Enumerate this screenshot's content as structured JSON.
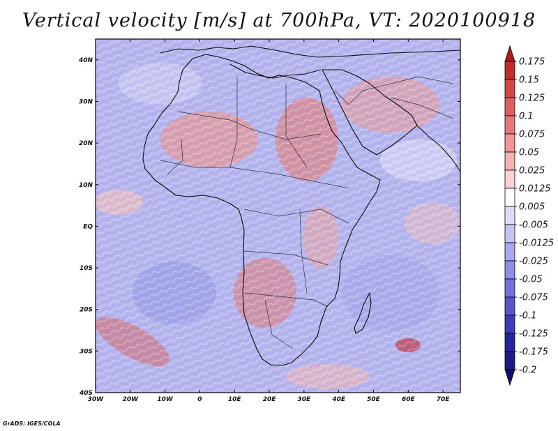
{
  "title": "Vertical velocity [m/s] at 700hPa, VT: 2020100918",
  "credit": "GrADS: IGES/COLA",
  "chart_data": {
    "type": "heatmap",
    "variable": "Vertical velocity",
    "units": "m/s",
    "level": "700hPa",
    "valid_time": "2020100918",
    "x_axis": {
      "range": [
        -30,
        75
      ],
      "ticks": [
        -30,
        -20,
        -10,
        0,
        10,
        20,
        30,
        40,
        50,
        60,
        70
      ],
      "tick_labels": [
        "30W",
        "20W",
        "10W",
        "0",
        "10E",
        "20E",
        "30E",
        "40E",
        "50E",
        "60E",
        "70E"
      ]
    },
    "y_axis": {
      "range": [
        -40,
        45
      ],
      "ticks": [
        40,
        30,
        20,
        10,
        0,
        -10,
        -20,
        -30,
        -40
      ],
      "tick_labels": [
        "40N",
        "30N",
        "20N",
        "10N",
        "EQ",
        "10S",
        "20S",
        "30S",
        "40S"
      ]
    },
    "colorbar": {
      "labels": [
        "0.175",
        "0.15",
        "0.125",
        "0.1",
        "0.075",
        "0.05",
        "0.025",
        "0.0125",
        "0.005",
        "-0.005",
        "-0.0125",
        "-0.025",
        "-0.05",
        "-0.075",
        "-0.1",
        "-0.125",
        "-0.175",
        "-0.2"
      ],
      "colors": [
        "#b01818",
        "#c42c2c",
        "#d44646",
        "#e05e5e",
        "#e87878",
        "#f09494",
        "#f5b0b0",
        "#fad0d0",
        "#ffffff",
        "#dcdcfa",
        "#c4c4f4",
        "#a8a8ee",
        "#8e8ee6",
        "#7272dc",
        "#5656cc",
        "#3c3cbc",
        "#2424a4",
        "#1a1a88",
        "#10106e"
      ]
    }
  }
}
